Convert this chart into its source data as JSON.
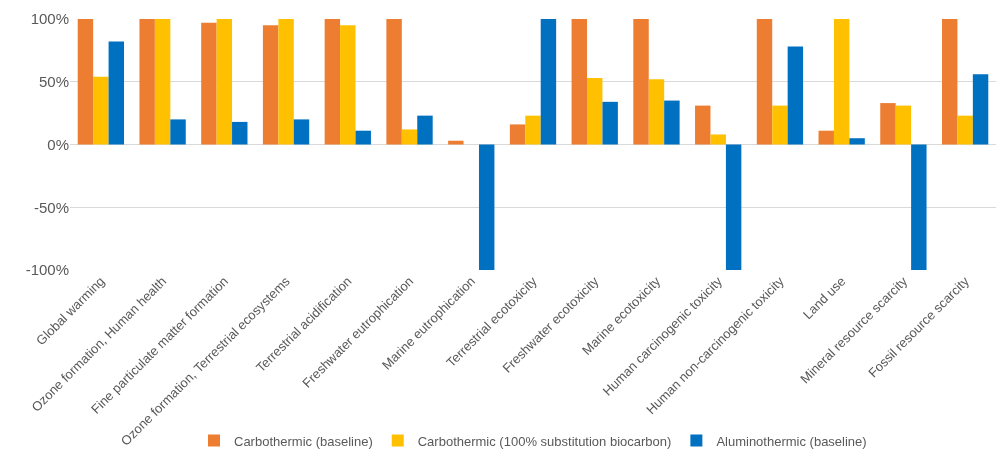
{
  "chart_data": {
    "type": "bar",
    "categories": [
      "Global warming",
      "Ozone formation, Human health",
      "Fine particulate matter formation",
      "Ozone formation, Terrestrial ecosystems",
      "Terrestrial acidification",
      "Freshwater eutrophication",
      "Marine eutrophication",
      "Terrestrial ecotoxicity",
      "Freshwater ecotoxicity",
      "Marine ecotoxicity",
      "Human carcinogenic toxicity",
      "Human non-carcinogenic toxicity",
      "Land use",
      "Mineral resource scarcity",
      "Fossil resource scarcity"
    ],
    "series": [
      {
        "name": "Carbothermic (baseline)",
        "color": "#ed7d31",
        "values": [
          100,
          100,
          97,
          95,
          100,
          100,
          3,
          16,
          100,
          100,
          31,
          100,
          11,
          33,
          100
        ]
      },
      {
        "name": "Carbothermic (100% substitution biocarbon)",
        "color": "#ffc000",
        "values": [
          54,
          100,
          100,
          100,
          95,
          12,
          0,
          23,
          53,
          52,
          8,
          31,
          100,
          31,
          23
        ]
      },
      {
        "name": "Aluminothermic (baseline)",
        "color": "#0070c0",
        "values": [
          82,
          20,
          18,
          20,
          11,
          23,
          -100,
          100,
          34,
          35,
          -100,
          78,
          5,
          -100,
          56
        ]
      }
    ],
    "ylim": [
      -100,
      100
    ],
    "yticks": [
      {
        "value": -100,
        "label": "-100%"
      },
      {
        "value": -50,
        "label": "-50%"
      },
      {
        "value": 0,
        "label": "0%"
      },
      {
        "value": 50,
        "label": "50%"
      },
      {
        "value": 100,
        "label": "100%"
      }
    ],
    "grid": "y",
    "legend": "bottom"
  }
}
